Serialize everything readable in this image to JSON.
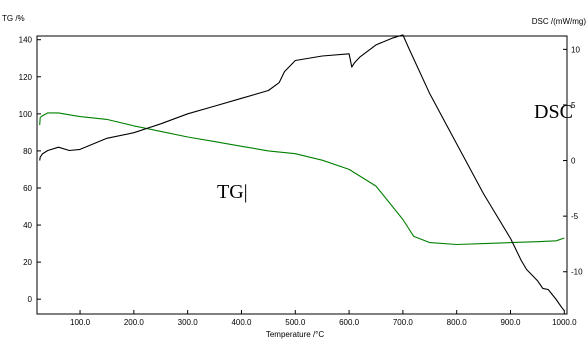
{
  "chart_data": {
    "type": "line",
    "title": "",
    "xlabel": "Temperature /°C",
    "ylabel_left": "TG /%",
    "ylabel_right": "DSC /(mW/mg)",
    "xlim": [
      20,
      1005
    ],
    "ylim_left": [
      -8,
      142
    ],
    "ylim_right": [
      -13.8,
      11.2
    ],
    "x_ticks": [
      100,
      200,
      300,
      400,
      500,
      600,
      700,
      800,
      900,
      1000
    ],
    "x_tick_labels": [
      "100.0",
      "200.0",
      "300.0",
      "400.0",
      "500.0",
      "600.0",
      "700.0",
      "800.0",
      "900.0",
      "1000.0"
    ],
    "y_left_ticks": [
      0,
      20,
      40,
      60,
      80,
      100,
      120,
      140
    ],
    "y_left_tick_labels": [
      "0",
      "20",
      "40",
      "60",
      "80",
      "100",
      "120",
      "140"
    ],
    "y_right_ticks": [
      -10,
      -5,
      0,
      5,
      10
    ],
    "y_right_tick_labels": [
      "-10",
      "-5",
      "0",
      "5",
      "10"
    ],
    "grid": false,
    "legend": "none",
    "annotations": [
      {
        "text": "TG|"
      },
      {
        "text": "DSC"
      }
    ],
    "series": [
      {
        "axis": "left",
        "color": "#008000",
        "x": [
          25,
          26,
          30,
          40,
          60,
          80,
          100,
          150,
          200,
          250,
          300,
          350,
          400,
          450,
          500,
          550,
          600,
          650,
          700,
          720,
          750,
          800,
          850,
          900,
          950,
          985,
          1000
        ],
        "y": [
          94,
          98,
          99,
          100.5,
          100.5,
          99.5,
          98.5,
          97,
          93.5,
          90.5,
          87.5,
          85,
          82.5,
          80,
          78.5,
          75,
          70,
          61,
          43,
          34,
          30.5,
          29.5,
          30,
          30.5,
          31,
          31.5,
          33
        ]
      },
      {
        "axis": "right",
        "color": "#000000",
        "x": [
          25,
          26,
          30,
          40,
          60,
          80,
          100,
          150,
          200,
          250,
          300,
          350,
          400,
          450,
          470,
          480,
          500,
          550,
          600,
          605,
          610,
          620,
          650,
          680,
          700,
          710,
          750,
          800,
          850,
          900,
          920,
          930,
          950,
          960,
          970,
          985,
          995,
          1000
        ],
        "y": [
          0,
          0.3,
          0.6,
          0.9,
          1.2,
          0.9,
          1,
          2,
          2.5,
          3.3,
          4.2,
          4.9,
          5.6,
          6.3,
          7,
          8,
          9,
          9.4,
          9.6,
          8.4,
          8.8,
          9.3,
          10.4,
          11,
          11.3,
          10.2,
          6,
          1.5,
          -3,
          -7,
          -9,
          -9.8,
          -10.8,
          -11.5,
          -11.6,
          -12.5,
          -13.2,
          -13.5
        ]
      }
    ]
  }
}
